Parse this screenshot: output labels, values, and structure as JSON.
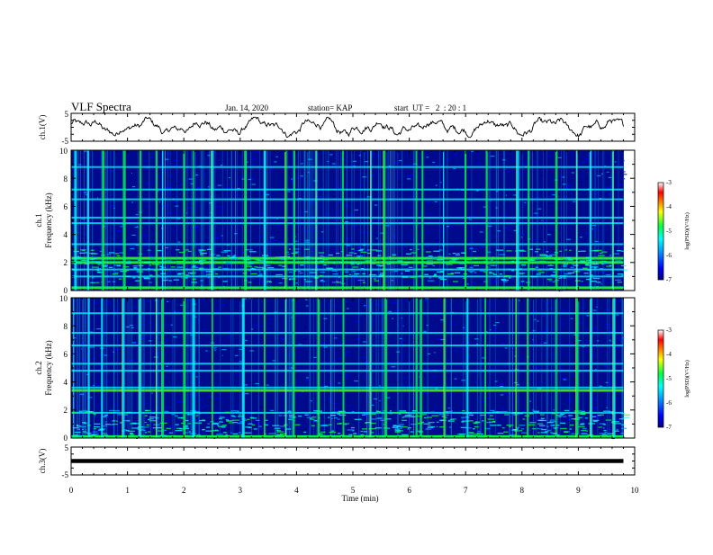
{
  "header": {
    "title": "VLF Spectra",
    "date": "Jan. 14, 2020",
    "station": "station= KAP",
    "start_time": "start  UT =   2  : 20 : 1"
  },
  "chart_data": [
    {
      "type": "line",
      "panel": "ch1-waveform",
      "ylabel": "ch.1(V)",
      "ylim": [
        -5,
        5
      ],
      "ytick_labels": [
        "5",
        "-5"
      ],
      "x_range_min": [
        0,
        9.8
      ],
      "shape": "noisy waveform oscillating roughly between -3 and 3 V"
    },
    {
      "type": "heatmap",
      "panel": "ch1-spectrogram",
      "ylabel_line1": "ch.1",
      "ylabel_line2": "Frequency (kHz)",
      "ylim": [
        0,
        10
      ],
      "ytick_labels": [
        "0",
        "2",
        "4",
        "6",
        "8",
        "10"
      ],
      "colorbar": {
        "label": "log(PSD)(V²/Hz)",
        "range": [
          -7,
          -3
        ],
        "tick_labels": [
          "-3",
          "-4",
          "-5",
          "-6",
          "-7"
        ],
        "colors": [
          "#000080",
          "#0000ff",
          "#00a0ff",
          "#00ffff",
          "#00ff40",
          "#ffff00",
          "#ff8000",
          "#ff0000",
          "#ffffff"
        ]
      },
      "bands_khz": [
        {
          "f": 2.0,
          "level": "high"
        },
        {
          "f": 2.3,
          "level": "high"
        },
        {
          "f": 1.0,
          "level": "medium"
        },
        {
          "f": 1.5,
          "level": "medium"
        },
        {
          "f": 3.3,
          "level": "medium"
        },
        {
          "f": 4.8,
          "level": "medium"
        },
        {
          "f": 5.2,
          "level": "medium"
        },
        {
          "f": 6.5,
          "level": "medium"
        },
        {
          "f": 7.2,
          "level": "medium"
        },
        {
          "f": 8.8,
          "level": "medium"
        },
        {
          "f": 0.2,
          "level": "high"
        }
      ]
    },
    {
      "type": "heatmap",
      "panel": "ch2-spectrogram",
      "ylabel_line1": "ch.2",
      "ylabel_line2": "Frequency (kHz)",
      "ylim": [
        0,
        10
      ],
      "ytick_labels": [
        "0",
        "2",
        "4",
        "6",
        "8",
        "10"
      ],
      "colorbar": {
        "label": "log(PSD)(V²/Hz)",
        "range": [
          -7,
          -3
        ],
        "tick_labels": [
          "-3",
          "-4",
          "-5",
          "-6",
          "-7"
        ],
        "colors": [
          "#000080",
          "#0000ff",
          "#00a0ff",
          "#00ffff",
          "#00ff40",
          "#ffff00",
          "#ff8000",
          "#ff0000",
          "#ffffff"
        ]
      },
      "bands_khz": [
        {
          "f": 3.4,
          "level": "high"
        },
        {
          "f": 3.6,
          "level": "medium"
        },
        {
          "f": 4.8,
          "level": "medium"
        },
        {
          "f": 5.3,
          "level": "medium"
        },
        {
          "f": 6.6,
          "level": "medium"
        },
        {
          "f": 7.5,
          "level": "medium"
        },
        {
          "f": 8.9,
          "level": "medium"
        },
        {
          "f": 1.8,
          "level": "medium"
        },
        {
          "f": 0.1,
          "level": "high"
        }
      ]
    },
    {
      "type": "line",
      "panel": "ch3-waveform",
      "ylabel": "ch.3(V)",
      "ylim": [
        -5,
        5
      ],
      "ytick_labels": [
        "5",
        "-5"
      ],
      "constant_level_v": 0,
      "x_range_min": [
        0,
        9.8
      ]
    }
  ],
  "x_axis": {
    "label": "Time (min)",
    "range": [
      0,
      10
    ],
    "tick_labels": [
      "0",
      "1",
      "2",
      "3",
      "4",
      "5",
      "6",
      "7",
      "8",
      "9",
      "10"
    ]
  },
  "burst_times_min": [
    0.05,
    0.3,
    0.55,
    0.9,
    1.2,
    1.5,
    1.6,
    2.0,
    2.15,
    2.5,
    3.05,
    3.4,
    3.8,
    3.95,
    4.35,
    4.8,
    5.3,
    5.55,
    6.1,
    6.2,
    6.6,
    7.0,
    7.35,
    7.9,
    8.1,
    8.6,
    8.95,
    9.2,
    9.6
  ]
}
